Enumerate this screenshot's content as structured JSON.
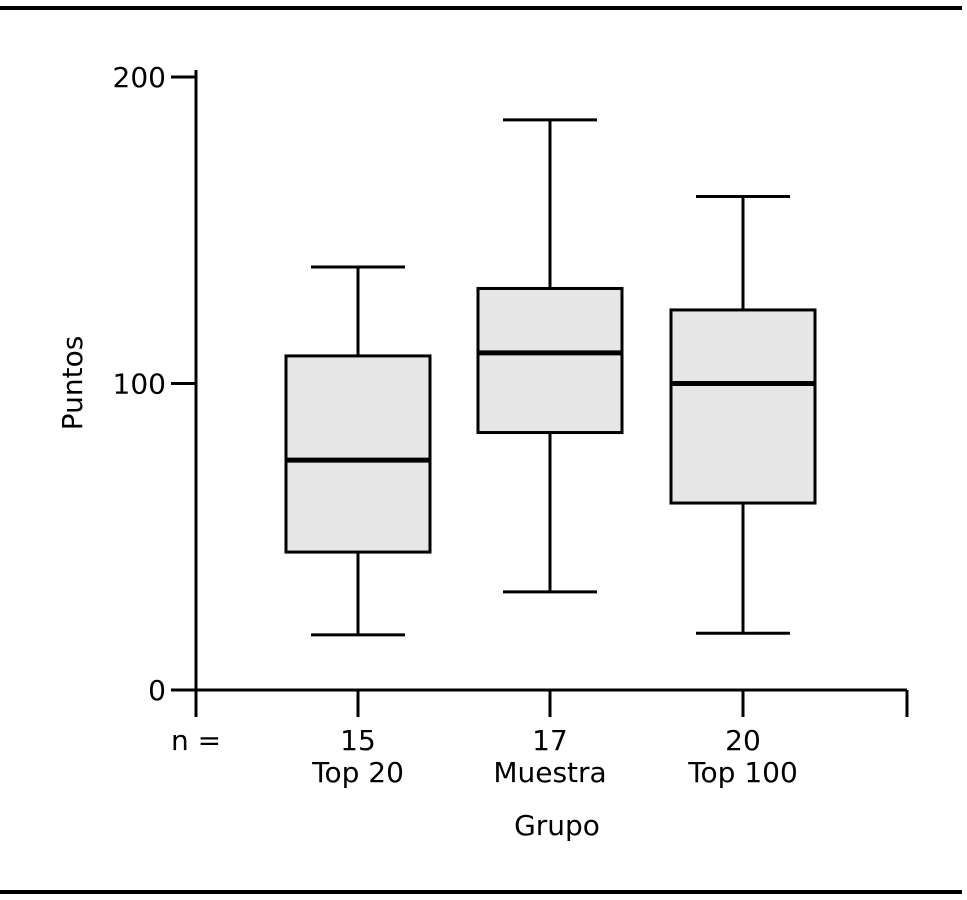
{
  "chart_data": {
    "type": "box",
    "title": "",
    "xlabel": "Grupo",
    "ylabel": "Puntos",
    "ylim": [
      0,
      200
    ],
    "yticks": [
      "0",
      "100",
      "200"
    ],
    "n_prefix": "n =",
    "categories": [
      "Top 20",
      "Muestra",
      "Top 100"
    ],
    "n": [
      "15",
      "17",
      "20"
    ],
    "boxes": [
      {
        "whisker_low": 18,
        "q1": 45,
        "median": 75,
        "q3": 109,
        "whisker_high": 138
      },
      {
        "whisker_low": 32,
        "q1": 84,
        "median": 110,
        "q3": 131,
        "whisker_high": 186
      },
      {
        "whisker_low": 18.5,
        "q1": 61,
        "median": 100,
        "q3": 124,
        "whisker_high": 161
      }
    ],
    "box_fill": "#e6e6e6",
    "line_color": "#000000"
  }
}
